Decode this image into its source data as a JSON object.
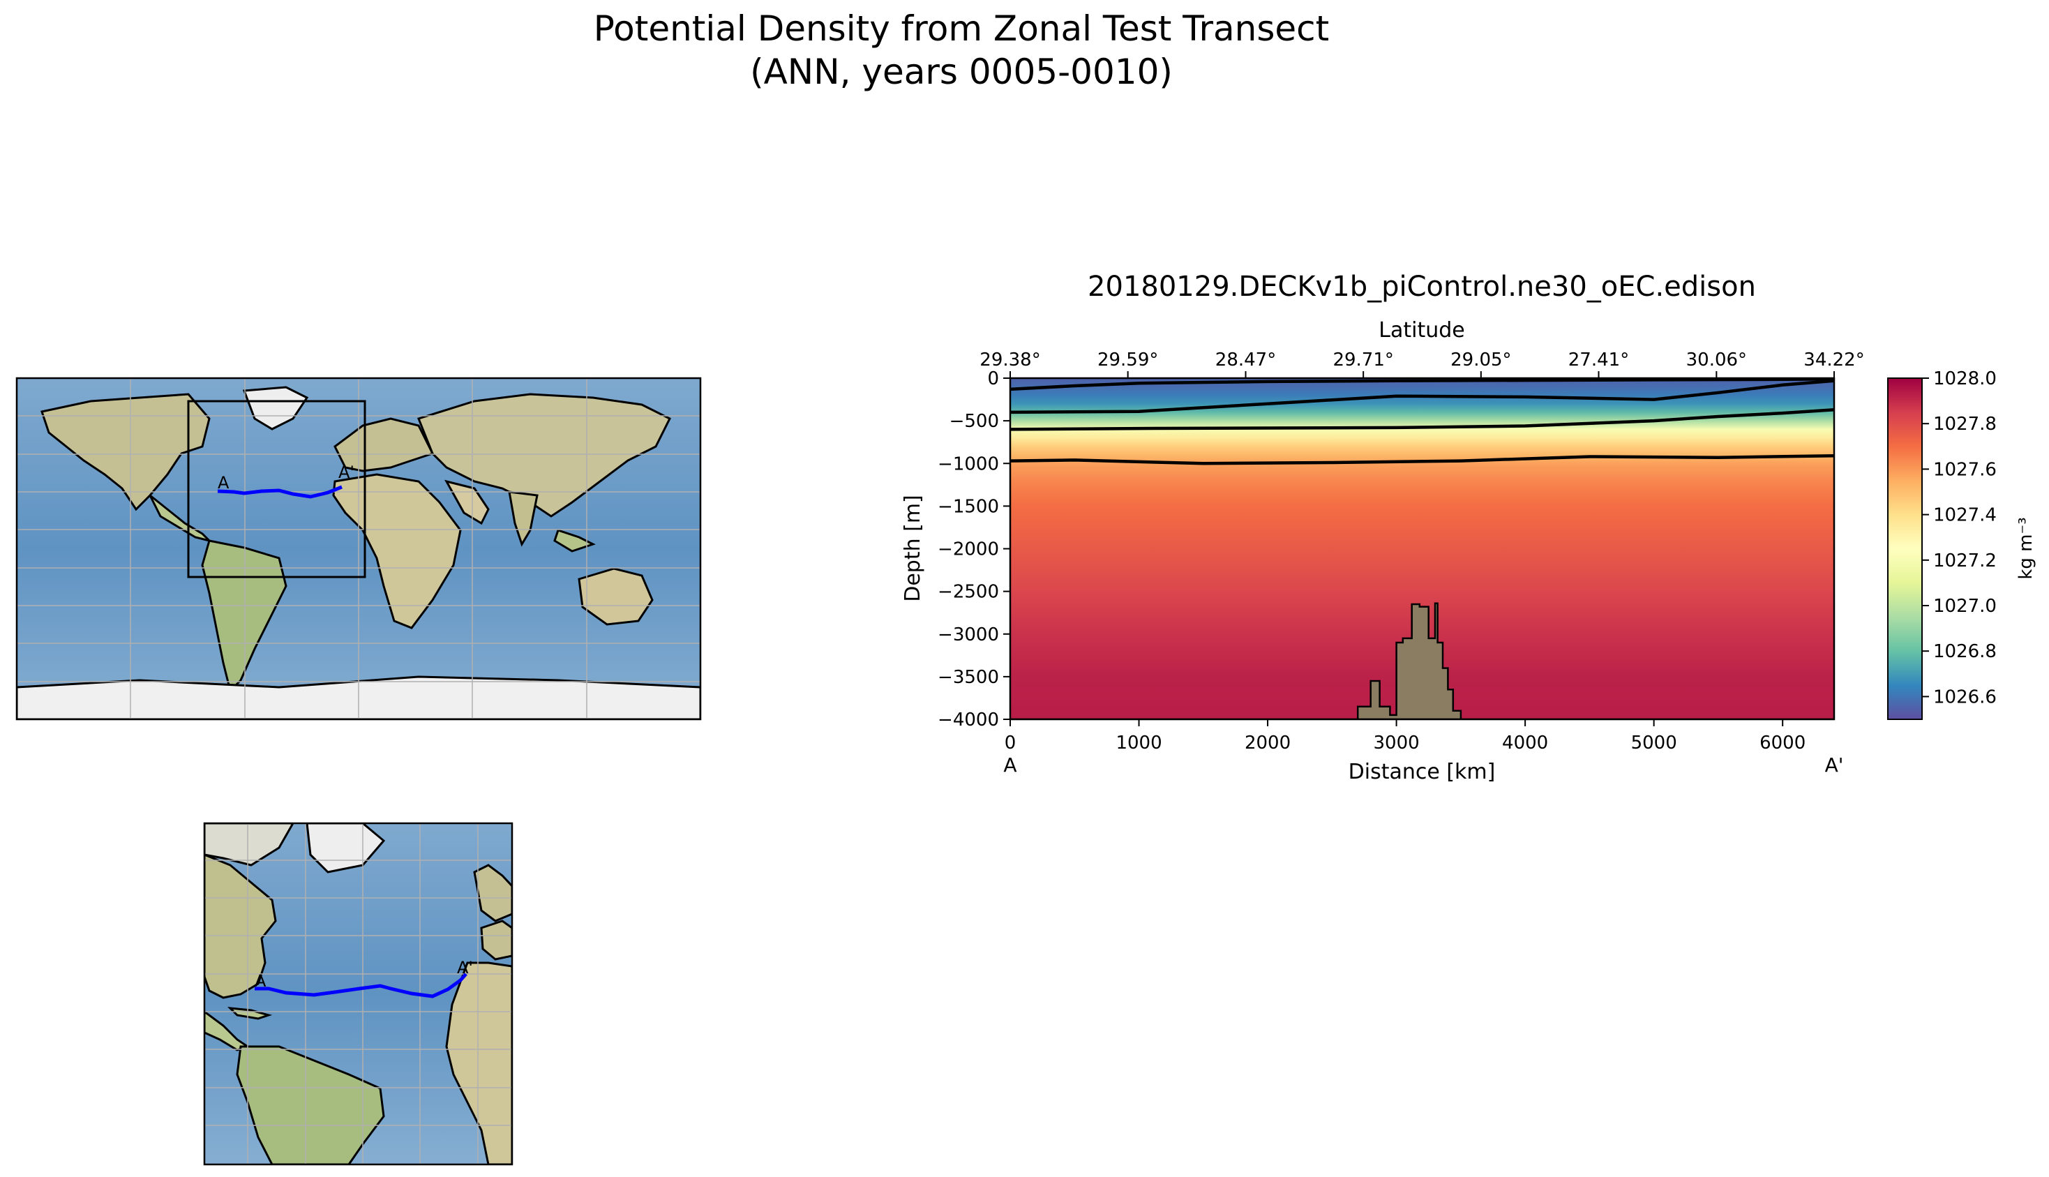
{
  "figure": {
    "suptitle_line1": "Potential Density from Zonal Test Transect",
    "suptitle_line2": "(ANN, years 0005-0010)"
  },
  "maps": {
    "global_label_start": "A",
    "global_label_end": "A'",
    "inset_label_start": "A",
    "inset_label_end": "A'",
    "transect_color": "#0000ff",
    "ocean_color": "#6d9cc6",
    "land_color": "#c9c39a"
  },
  "colors": {
    "bathymetry": "#8b7d62",
    "contour": "#000000"
  },
  "chart_data": {
    "type": "heatmap",
    "title": "20180129.DECKv1b_piControl.ne30_oEC.edison",
    "xlabel": "Distance [km]",
    "ylabel": "Depth [m]",
    "top_axis_label": "Latitude",
    "colorbar_label": "kg m⁻³",
    "xlim": [
      0,
      6400
    ],
    "ylim": [
      -4000,
      0
    ],
    "x_ticks": [
      0,
      1000,
      2000,
      3000,
      4000,
      5000,
      6000
    ],
    "x_tick_labels": [
      "0",
      "1000",
      "2000",
      "3000",
      "4000",
      "5000",
      "6000"
    ],
    "y_ticks": [
      0,
      -500,
      -1000,
      -1500,
      -2000,
      -2500,
      -3000,
      -3500,
      -4000
    ],
    "y_tick_labels": [
      "0",
      "−500",
      "−1000",
      "−1500",
      "−2000",
      "−2500",
      "−3000",
      "−3500",
      "−4000"
    ],
    "top_tick_labels": [
      "29.38°",
      "29.59°",
      "28.47°",
      "29.71°",
      "29.05°",
      "27.41°",
      "30.06°",
      "34.22°"
    ],
    "top_tick_distances": [
      0,
      914,
      1829,
      2743,
      3657,
      4571,
      5486,
      6400
    ],
    "endpoint_labels": [
      "A",
      "A'"
    ],
    "colorbar_range": [
      1026.5,
      1028.0
    ],
    "colorbar_ticks": [
      1026.6,
      1026.8,
      1027.0,
      1027.2,
      1027.4,
      1027.6,
      1027.8,
      1028.0
    ],
    "colorbar_tick_labels": [
      "1026.6",
      "1026.8",
      "1027.0",
      "1027.2",
      "1027.4",
      "1027.6",
      "1027.8",
      "1028.0"
    ],
    "colormap": "Spectral_r",
    "density_profile": {
      "depth": [
        0,
        -100,
        -200,
        -300,
        -400,
        -500,
        -600,
        -700,
        -800,
        -900,
        -1000,
        -1200,
        -1500,
        -2000,
        -2500,
        -3000,
        -3500,
        -4000
      ],
      "density": [
        1026.55,
        1026.58,
        1026.62,
        1026.68,
        1026.78,
        1026.95,
        1027.2,
        1027.35,
        1027.45,
        1027.52,
        1027.58,
        1027.64,
        1027.7,
        1027.76,
        1027.82,
        1027.88,
        1027.92,
        1027.93
      ]
    },
    "contours": [
      {
        "x": [
          0,
          500,
          1000,
          2000,
          3000,
          4000,
          5000,
          6000,
          6400
        ],
        "y": [
          -130,
          -90,
          -60,
          -40,
          -30,
          -25,
          -20,
          -15,
          -10
        ]
      },
      {
        "x": [
          0,
          1000,
          2000,
          3000,
          4000,
          5000,
          5500,
          6000,
          6400
        ],
        "y": [
          -400,
          -390,
          -300,
          -210,
          -220,
          -250,
          -170,
          -80,
          -30
        ]
      },
      {
        "x": [
          0,
          1000,
          2000,
          3000,
          4000,
          5000,
          5500,
          6000,
          6400
        ],
        "y": [
          -600,
          -590,
          -585,
          -580,
          -560,
          -500,
          -450,
          -410,
          -370
        ]
      },
      {
        "x": [
          0,
          500,
          1500,
          2500,
          3500,
          4500,
          5500,
          6400
        ],
        "y": [
          -970,
          -960,
          -1000,
          -990,
          -970,
          -920,
          -930,
          -910
        ]
      }
    ],
    "bathymetry": {
      "x": [
        0,
        2700,
        2700,
        2800,
        2800,
        2870,
        2870,
        2950,
        2950,
        3000,
        3000,
        3050,
        3050,
        3120,
        3120,
        3180,
        3180,
        3250,
        3250,
        3300,
        3300,
        3320,
        3320,
        3360,
        3360,
        3400,
        3400,
        3440,
        3440,
        3500,
        3500,
        6400
      ],
      "y": [
        -4000,
        -4000,
        -3850,
        -3850,
        -3550,
        -3550,
        -3850,
        -3850,
        -3950,
        -3950,
        -3100,
        -3100,
        -3050,
        -3050,
        -2650,
        -2650,
        -2680,
        -2680,
        -3050,
        -3050,
        -2640,
        -2640,
        -3100,
        -3100,
        -3400,
        -3400,
        -3650,
        -3650,
        -3900,
        -3900,
        -4000,
        -4000
      ]
    }
  }
}
